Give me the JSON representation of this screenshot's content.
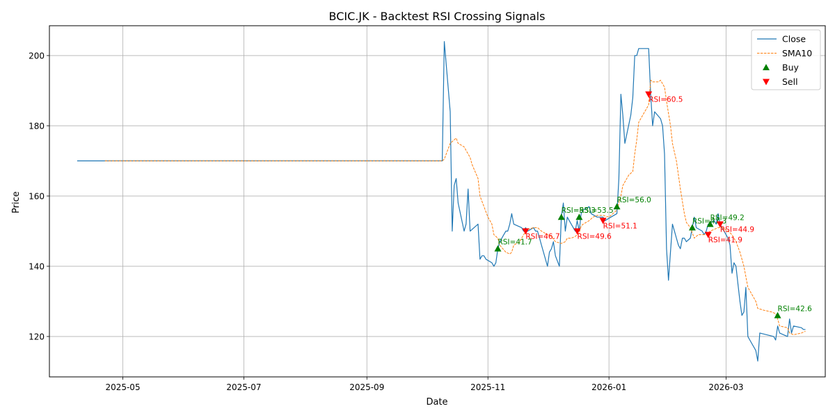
{
  "chart_data": {
    "type": "line",
    "title": "BCIC.JK - Backtest RSI Crossing Signals",
    "xlabel": "Date",
    "ylabel": "Price",
    "xlim": [
      "2025-03-25",
      "2026-04-20"
    ],
    "ylim": [
      108.5,
      208.5
    ],
    "grid": true,
    "legend_position": "top-right",
    "x_ticks": [
      {
        "date": "2025-05-01",
        "label": "2025-05"
      },
      {
        "date": "2025-07-01",
        "label": "2025-07"
      },
      {
        "date": "2025-09-01",
        "label": "2025-09"
      },
      {
        "date": "2025-11-01",
        "label": "2025-11"
      },
      {
        "date": "2026-01-01",
        "label": "2026-01"
      },
      {
        "date": "2026-03-01",
        "label": "2026-03"
      }
    ],
    "y_ticks": [
      120,
      140,
      160,
      180,
      200
    ],
    "legend": [
      {
        "label": "Close",
        "kind": "line",
        "color": "#1f77b4"
      },
      {
        "label": "SMA10",
        "kind": "dashed",
        "color": "#ff7f0e"
      },
      {
        "label": "Buy",
        "kind": "up",
        "color": "#008000"
      },
      {
        "label": "Sell",
        "kind": "down",
        "color": "#ff0000"
      }
    ],
    "series": [
      {
        "name": "Close",
        "color": "#1f77b4",
        "style": "solid",
        "points": [
          [
            "2025-04-08",
            170
          ],
          [
            "2025-04-22",
            170
          ],
          [
            "2025-06-10",
            170
          ],
          [
            "2025-08-12",
            170
          ],
          [
            "2025-10-08",
            170
          ],
          [
            "2025-10-09",
            170
          ],
          [
            "2025-10-10",
            204
          ],
          [
            "2025-10-13",
            184
          ],
          [
            "2025-10-14",
            150
          ],
          [
            "2025-10-15",
            163
          ],
          [
            "2025-10-16",
            165
          ],
          [
            "2025-10-17",
            158
          ],
          [
            "2025-10-20",
            150
          ],
          [
            "2025-10-21",
            152
          ],
          [
            "2025-10-22",
            162
          ],
          [
            "2025-10-23",
            150
          ],
          [
            "2025-10-27",
            152
          ],
          [
            "2025-10-28",
            142
          ],
          [
            "2025-10-29",
            143
          ],
          [
            "2025-10-30",
            143
          ],
          [
            "2025-10-31",
            142
          ],
          [
            "2025-11-03",
            141
          ],
          [
            "2025-11-04",
            140
          ],
          [
            "2025-11-05",
            141
          ],
          [
            "2025-11-06",
            145
          ],
          [
            "2025-11-07",
            147
          ],
          [
            "2025-11-10",
            150
          ],
          [
            "2025-11-11",
            150
          ],
          [
            "2025-11-12",
            152
          ],
          [
            "2025-11-13",
            155
          ],
          [
            "2025-11-14",
            152
          ],
          [
            "2025-11-18",
            151
          ],
          [
            "2025-11-19",
            150
          ],
          [
            "2025-11-20",
            151
          ],
          [
            "2025-11-21",
            150
          ],
          [
            "2025-11-24",
            151
          ],
          [
            "2025-11-25",
            150
          ],
          [
            "2025-11-26",
            150
          ],
          [
            "2025-11-27",
            148
          ],
          [
            "2025-11-28",
            146
          ],
          [
            "2025-12-01",
            140
          ],
          [
            "2025-12-02",
            144
          ],
          [
            "2025-12-03",
            145
          ],
          [
            "2025-12-04",
            147
          ],
          [
            "2025-12-05",
            143
          ],
          [
            "2025-12-07",
            140
          ],
          [
            "2025-12-08",
            154
          ],
          [
            "2025-12-09",
            158
          ],
          [
            "2025-12-10",
            150
          ],
          [
            "2025-12-11",
            154
          ],
          [
            "2025-12-12",
            153
          ],
          [
            "2025-12-15",
            150
          ],
          [
            "2025-12-16",
            153
          ],
          [
            "2025-12-17",
            150
          ],
          [
            "2025-12-18",
            155
          ],
          [
            "2025-12-19",
            156
          ],
          [
            "2025-12-22",
            157
          ],
          [
            "2025-12-23",
            155
          ],
          [
            "2025-12-26",
            154
          ],
          [
            "2025-12-29",
            154
          ],
          [
            "2025-12-30",
            153
          ],
          [
            "2026-01-02",
            154
          ],
          [
            "2026-01-05",
            155
          ],
          [
            "2026-01-06",
            165
          ],
          [
            "2026-01-07",
            189
          ],
          [
            "2026-01-08",
            183
          ],
          [
            "2026-01-09",
            175
          ],
          [
            "2026-01-12",
            183
          ],
          [
            "2026-01-13",
            188
          ],
          [
            "2026-01-14",
            200
          ],
          [
            "2026-01-15",
            200
          ],
          [
            "2026-01-16",
            202
          ],
          [
            "2026-01-21",
            202
          ],
          [
            "2026-01-22",
            189
          ],
          [
            "2026-01-23",
            180
          ],
          [
            "2026-01-24",
            184
          ],
          [
            "2026-01-27",
            182
          ],
          [
            "2026-01-28",
            180
          ],
          [
            "2026-01-29",
            172
          ],
          [
            "2026-01-30",
            145
          ],
          [
            "2026-01-31",
            136
          ],
          [
            "2026-02-02",
            152
          ],
          [
            "2026-02-03",
            150
          ],
          [
            "2026-02-04",
            148
          ],
          [
            "2026-02-05",
            146
          ],
          [
            "2026-02-06",
            145
          ],
          [
            "2026-02-07",
            148
          ],
          [
            "2026-02-08",
            148
          ],
          [
            "2026-02-09",
            147
          ],
          [
            "2026-02-10",
            147.5
          ],
          [
            "2026-02-11",
            148
          ],
          [
            "2026-02-12",
            151
          ],
          [
            "2026-02-13",
            154
          ],
          [
            "2026-02-14",
            151
          ],
          [
            "2026-02-17",
            150
          ],
          [
            "2026-02-18",
            149
          ],
          [
            "2026-02-19",
            150
          ],
          [
            "2026-02-20",
            152
          ],
          [
            "2026-02-23",
            153
          ],
          [
            "2026-02-24",
            152
          ],
          [
            "2026-02-25",
            155
          ],
          [
            "2026-02-26",
            152
          ],
          [
            "2026-02-27",
            151
          ],
          [
            "2026-03-02",
            148
          ],
          [
            "2026-03-03",
            146
          ],
          [
            "2026-03-04",
            138
          ],
          [
            "2026-03-05",
            141
          ],
          [
            "2026-03-06",
            140
          ],
          [
            "2026-03-07",
            135
          ],
          [
            "2026-03-08",
            130
          ],
          [
            "2026-03-09",
            126
          ],
          [
            "2026-03-10",
            127
          ],
          [
            "2026-03-11",
            134
          ],
          [
            "2026-03-12",
            120
          ],
          [
            "2026-03-13",
            119
          ],
          [
            "2026-03-16",
            116
          ],
          [
            "2026-03-17",
            113
          ],
          [
            "2026-03-18",
            121
          ],
          [
            "2026-03-25",
            120
          ],
          [
            "2026-03-26",
            119
          ],
          [
            "2026-03-27",
            123
          ],
          [
            "2026-03-28",
            121
          ],
          [
            "2026-04-01",
            120
          ],
          [
            "2026-04-02",
            125
          ],
          [
            "2026-04-03",
            121
          ],
          [
            "2026-04-04",
            123
          ],
          [
            "2026-04-08",
            122.5
          ],
          [
            "2026-04-09",
            122
          ],
          [
            "2026-04-10",
            122
          ]
        ]
      },
      {
        "name": "SMA10",
        "color": "#ff7f0e",
        "style": "dashed",
        "points": [
          [
            "2025-04-22",
            170
          ],
          [
            "2025-06-10",
            170
          ],
          [
            "2025-08-12",
            170
          ],
          [
            "2025-10-09",
            170
          ],
          [
            "2025-10-10",
            170.5
          ],
          [
            "2025-10-13",
            175
          ],
          [
            "2025-10-15",
            176
          ],
          [
            "2025-10-16",
            176.5
          ],
          [
            "2025-10-17",
            175
          ],
          [
            "2025-10-20",
            174
          ],
          [
            "2025-10-21",
            173
          ],
          [
            "2025-10-23",
            171
          ],
          [
            "2025-10-24",
            169
          ],
          [
            "2025-10-27",
            165
          ],
          [
            "2025-10-28",
            160
          ],
          [
            "2025-10-30",
            157
          ],
          [
            "2025-11-01",
            154
          ],
          [
            "2025-11-03",
            152
          ],
          [
            "2025-11-04",
            149
          ],
          [
            "2025-11-05",
            148.5
          ],
          [
            "2025-11-06",
            148
          ],
          [
            "2025-11-07",
            146
          ],
          [
            "2025-11-10",
            144
          ],
          [
            "2025-11-12",
            143.5
          ],
          [
            "2025-11-13",
            144
          ],
          [
            "2025-11-14",
            146
          ],
          [
            "2025-11-17",
            147
          ],
          [
            "2025-11-19",
            149
          ],
          [
            "2025-11-21",
            150.5
          ],
          [
            "2025-11-24",
            151
          ],
          [
            "2025-11-26",
            151
          ],
          [
            "2025-11-28",
            150
          ],
          [
            "2025-12-01",
            149
          ],
          [
            "2025-12-03",
            148.5
          ],
          [
            "2025-12-05",
            147
          ],
          [
            "2025-12-08",
            146.5
          ],
          [
            "2025-12-10",
            147
          ],
          [
            "2025-12-11",
            148
          ],
          [
            "2025-12-13",
            148
          ],
          [
            "2025-12-15",
            148.5
          ],
          [
            "2025-12-16",
            149
          ],
          [
            "2025-12-17",
            149.5
          ],
          [
            "2025-12-18",
            151.5
          ],
          [
            "2025-12-19",
            152
          ],
          [
            "2025-12-22",
            153
          ],
          [
            "2025-12-24",
            154
          ],
          [
            "2025-12-26",
            154.5
          ],
          [
            "2025-12-29",
            154.5
          ],
          [
            "2026-01-01",
            154
          ],
          [
            "2026-01-02",
            154.5
          ],
          [
            "2026-01-05",
            156
          ],
          [
            "2026-01-07",
            160
          ],
          [
            "2026-01-08",
            163
          ],
          [
            "2026-01-11",
            166
          ],
          [
            "2026-01-13",
            167
          ],
          [
            "2026-01-14",
            172
          ],
          [
            "2026-01-15",
            176
          ],
          [
            "2026-01-16",
            181
          ],
          [
            "2026-01-18",
            183
          ],
          [
            "2026-01-20",
            185
          ],
          [
            "2026-01-21",
            186
          ],
          [
            "2026-01-22",
            193
          ],
          [
            "2026-01-23",
            192.5
          ],
          [
            "2026-01-26",
            192.5
          ],
          [
            "2026-01-27",
            193
          ],
          [
            "2026-01-29",
            191
          ],
          [
            "2026-01-30",
            187
          ],
          [
            "2026-02-01",
            180
          ],
          [
            "2026-02-02",
            175
          ],
          [
            "2026-02-04",
            170
          ],
          [
            "2026-02-06",
            162
          ],
          [
            "2026-02-08",
            155
          ],
          [
            "2026-02-09",
            152.5
          ],
          [
            "2026-02-11",
            151
          ],
          [
            "2026-02-13",
            148
          ],
          [
            "2026-02-15",
            149
          ],
          [
            "2026-02-17",
            149
          ],
          [
            "2026-02-19",
            149
          ],
          [
            "2026-02-21",
            150
          ],
          [
            "2026-02-23",
            150.5
          ],
          [
            "2026-02-25",
            151
          ],
          [
            "2026-02-27",
            151
          ],
          [
            "2026-03-02",
            150
          ],
          [
            "2026-03-04",
            149
          ],
          [
            "2026-03-06",
            147
          ],
          [
            "2026-03-08",
            144
          ],
          [
            "2026-03-10",
            140
          ],
          [
            "2026-03-12",
            134
          ],
          [
            "2026-03-14",
            132
          ],
          [
            "2026-03-16",
            130
          ],
          [
            "2026-03-17",
            128
          ],
          [
            "2026-03-20",
            127.5
          ],
          [
            "2026-03-24",
            127
          ],
          [
            "2026-03-26",
            126.5
          ],
          [
            "2026-03-27",
            125
          ],
          [
            "2026-03-28",
            123
          ],
          [
            "2026-04-01",
            122.5
          ],
          [
            "2026-04-02",
            121
          ],
          [
            "2026-04-04",
            120.5
          ],
          [
            "2026-04-08",
            121
          ],
          [
            "2026-04-10",
            121.5
          ]
        ]
      }
    ],
    "buy_signals": [
      {
        "date": "2025-11-06",
        "price": 145,
        "label": "RSI=41.7"
      },
      {
        "date": "2025-12-08",
        "price": 154,
        "label": "RSI=53.3"
      },
      {
        "date": "2025-12-17",
        "price": 154,
        "label": "RSI=53.5"
      },
      {
        "date": "2026-01-05",
        "price": 157,
        "label": "RSI=56.0"
      },
      {
        "date": "2026-02-12",
        "price": 151,
        "label": "RSI=47.3"
      },
      {
        "date": "2026-02-21",
        "price": 152,
        "label": "RSI=49.2"
      },
      {
        "date": "2026-03-27",
        "price": 126,
        "label": "RSI=42.6"
      }
    ],
    "sell_signals": [
      {
        "date": "2025-11-20",
        "price": 150,
        "label": "RSI=46.7"
      },
      {
        "date": "2025-12-16",
        "price": 150,
        "label": "RSI=49.6"
      },
      {
        "date": "2025-12-29",
        "price": 153,
        "label": "RSI=51.1"
      },
      {
        "date": "2026-01-21",
        "price": 189,
        "label": "RSI=60.5"
      },
      {
        "date": "2026-02-20",
        "price": 149,
        "label": "RSI=41.9"
      },
      {
        "date": "2026-02-26",
        "price": 152,
        "label": "RSI=44.9"
      }
    ]
  }
}
